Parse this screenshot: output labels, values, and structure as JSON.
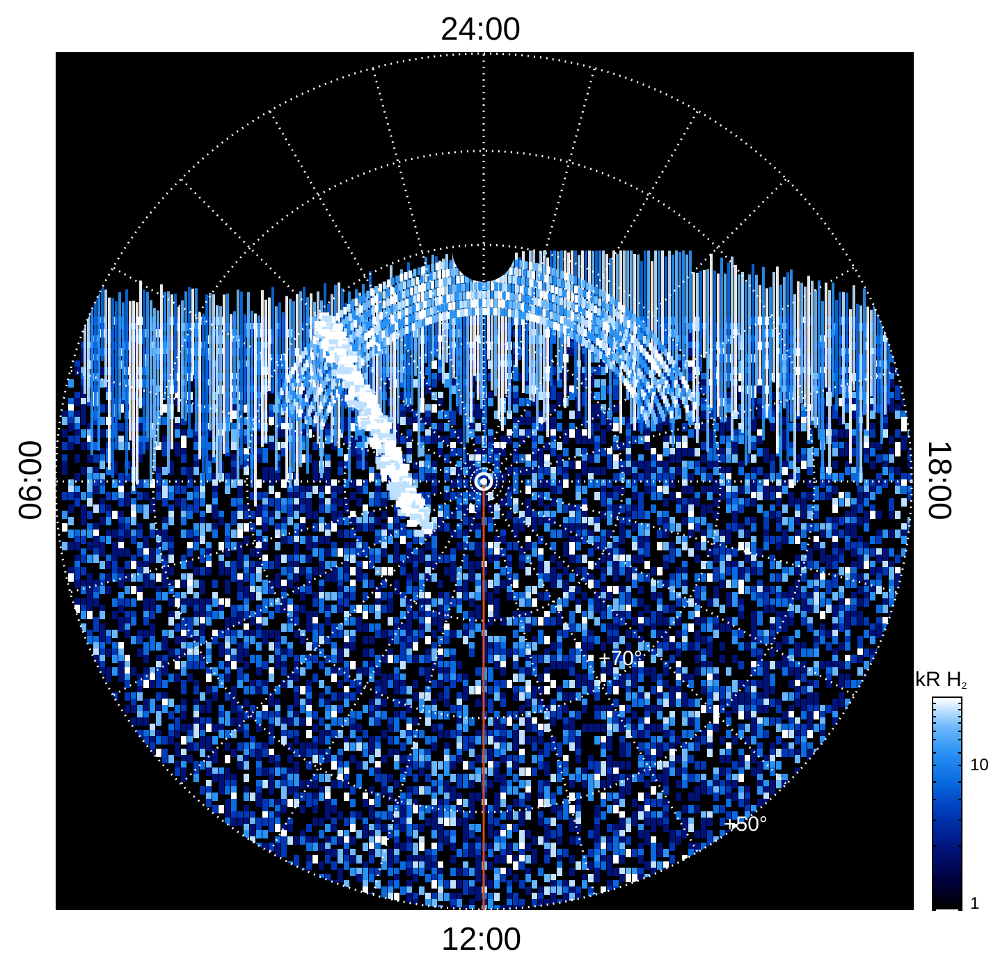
{
  "local_time_labels": {
    "top": "24:00",
    "bottom": "12:00",
    "left": "06:00",
    "right": "18:00"
  },
  "latitude_labels": {
    "inner": "+70°",
    "outer": "+50°"
  },
  "colorbar": {
    "title_main": "kR H",
    "title_sub": "2",
    "tick_high": "10",
    "tick_low": "1",
    "scale": "log",
    "range": [
      1,
      25
    ],
    "colors": [
      "#000000",
      "#001278",
      "#0a6ae0",
      "#6bb8fb",
      "#ffffff"
    ]
  },
  "map": {
    "background": "#000000",
    "grid_color": "#ffffff",
    "meridian_line_color": "#d84a1a",
    "emission_colors": [
      "#001278",
      "#0038b8",
      "#0a6ae0",
      "#2a92f5",
      "#6bb8fb",
      "#bfe1ff",
      "#ffffff"
    ]
  }
}
